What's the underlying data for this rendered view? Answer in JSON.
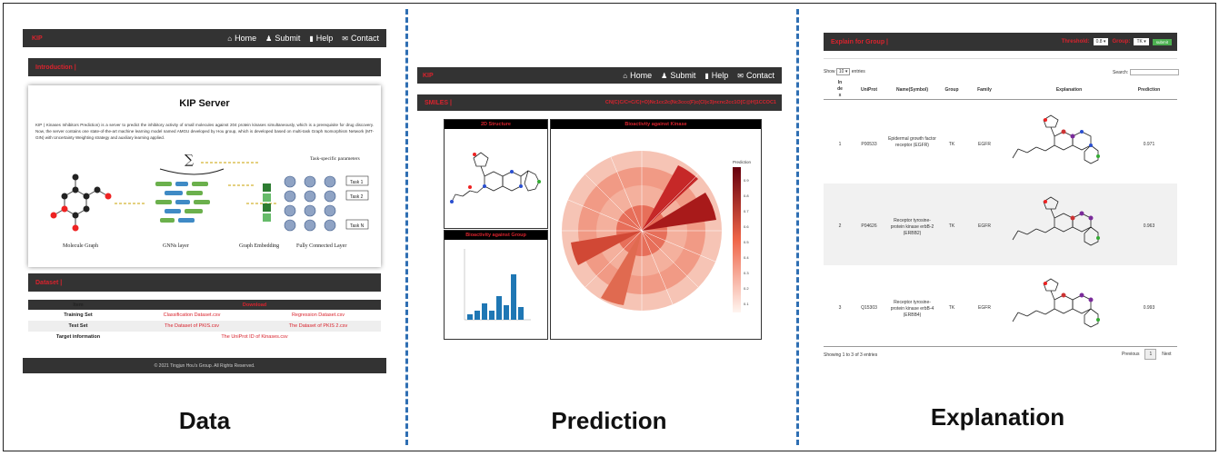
{
  "captions": {
    "data": "Data",
    "prediction": "Prediction",
    "explanation": "Explanation"
  },
  "nav": {
    "brand": "KIP",
    "home": "Home",
    "submit": "Submit",
    "help": "Help",
    "contact": "Contact"
  },
  "panel1": {
    "intro_bar": "Introduction |",
    "server_title": "KIP Server",
    "description": "KIP ( Kinases Inhibitors Prediction) is a server to predict the inhibitory activity of small molecules against 204 protein kinases simultaneously, which is a prerequisite for drug discovery. Now, the server contains one state-of-the-art machine learning model named AMGU developed by Hou group, which is developed based on multi-task Graph Isomorphism Network (MT-GIN) with Uncertainty Weighting strategy and auxiliary learning applied.",
    "figure_labels": {
      "molecule_graph": "Molecule Graph",
      "gnn_layer": "GNNs layer",
      "graph_embedding": "Graph Embedding",
      "fc_layer": "Fully Connected Layer",
      "task_params": "Task-specific parameters",
      "task1": "Task 1",
      "task2": "Task 2",
      "taskn": "Task N"
    },
    "dataset_bar": "Dataset |",
    "table_headers": [
      "Item",
      "Download"
    ],
    "rows": [
      {
        "item": "Training Set",
        "a": "Classification Dataset.csv",
        "b": "Regression Dataset.csv"
      },
      {
        "item": "Test Set",
        "a": "The Dataset of PKIS.csv",
        "b": "The Dataset of PKIS 2.csv"
      },
      {
        "item": "Target information",
        "a": "The UniProt ID of Kinases.csv",
        "b": ""
      }
    ],
    "footer": "© 2021 Tingjun Hou's Group. All Rights Reserved."
  },
  "panel2": {
    "smiles_label": "SMILES |",
    "smiles_value": "CN(C)C/C=C/C(=O)Nc1cc2c(Nc3ccc(F)c(Cl)c3)ncnc2cc1O[C@H]1CCOC1",
    "structure_title": "2D Structure",
    "kinase_title": "Bioactivity against Kinase",
    "group_title": "Bioactivity against Group",
    "prediction_label": "Prediction",
    "colorbar_ticks": [
      "0.9",
      "0.8",
      "0.7",
      "0.6",
      "0.5",
      "0.4",
      "0.3",
      "0.2",
      "0.1"
    ]
  },
  "panel3": {
    "title": "Explain for Group |",
    "threshold_label": "Threshold:",
    "threshold_value": "0.8",
    "group_label": "Group:",
    "group_value": "TK",
    "submit": "submit",
    "show_label": "Show",
    "show_value": "10",
    "entries_label": "entries",
    "search_label": "Search:",
    "headers": [
      "In de x",
      "UniProt",
      "Name(Symbol)",
      "Group",
      "Family",
      "Explanation",
      "Prediction"
    ],
    "rows": [
      {
        "index": "1",
        "uniprot": "P00533",
        "name": "Epidermal growth factor receptor (EGFR)",
        "group": "TK",
        "family": "EGFR",
        "prediction": "0.971"
      },
      {
        "index": "2",
        "uniprot": "P04626",
        "name": "Receptor tyrosine-protein kinase erbB-2 (ERBB2)",
        "group": "TK",
        "family": "EGFR",
        "prediction": "0.963"
      },
      {
        "index": "3",
        "uniprot": "Q15303",
        "name": "Receptor tyrosine-protein kinase erbB-4 (ERBB4)",
        "group": "TK",
        "family": "EGFR",
        "prediction": "0.993"
      }
    ],
    "showing": "Showing 1 to 3 of 3 entries",
    "previous": "Previous",
    "page": "1",
    "next": "Next"
  },
  "colors": {
    "accent": "#d9232d",
    "navbar": "#333333",
    "divider": "#2f6fb3"
  }
}
